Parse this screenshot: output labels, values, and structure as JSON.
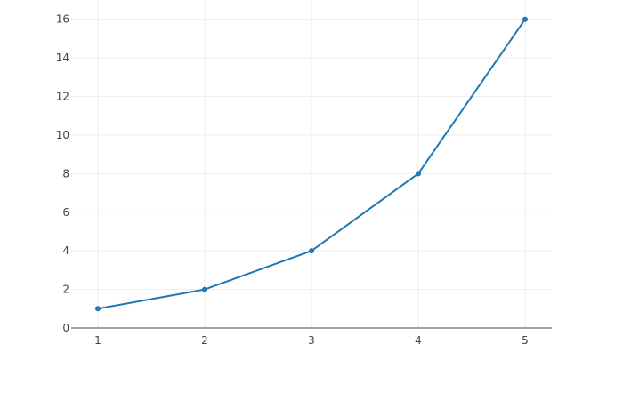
{
  "chart_data": {
    "type": "line",
    "x": [
      1,
      2,
      3,
      4,
      5
    ],
    "series": [
      {
        "values": [
          1,
          2,
          4,
          8,
          16
        ],
        "color": "#1f77b4",
        "mode": "lines+markers"
      }
    ],
    "xlim": [
      0.75,
      5.25
    ],
    "ylim": [
      0,
      17.0
    ],
    "xticks": [
      "1",
      "2",
      "3",
      "4",
      "5"
    ],
    "yticks": [
      "0",
      "2",
      "4",
      "6",
      "8",
      "10",
      "12",
      "14",
      "16"
    ],
    "grid": true,
    "title": "",
    "xlabel": "",
    "ylabel": ""
  }
}
